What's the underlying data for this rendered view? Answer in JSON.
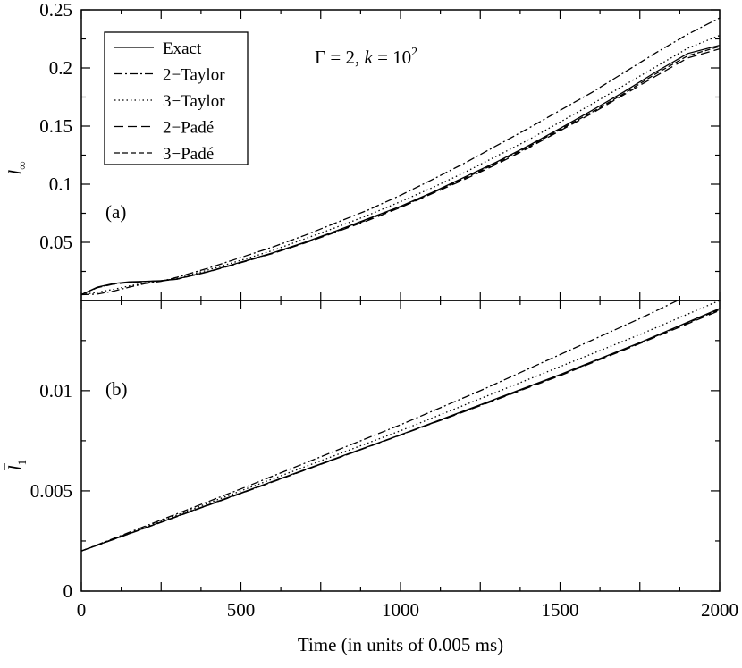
{
  "chart_data": [
    {
      "panel": "(a)",
      "type": "line",
      "ylabel": "l∞",
      "ylim": [
        0,
        0.25
      ],
      "xlim": [
        0,
        2000
      ],
      "yticks": [
        "0.05",
        "0.1",
        "0.15",
        "0.2",
        "0.25"
      ],
      "annotation": "Γ = 2, k = 10²",
      "legend_position": "top-left",
      "x": [
        0,
        50,
        100,
        150,
        200,
        250,
        300,
        400,
        500,
        600,
        700,
        800,
        900,
        1000,
        1100,
        1200,
        1300,
        1400,
        1500,
        1600,
        1700,
        1800,
        1900,
        2000
      ],
      "series": [
        {
          "name": "Exact",
          "dash": "solid",
          "values": [
            0.005,
            0.0115,
            0.0145,
            0.016,
            0.0165,
            0.017,
            0.0185,
            0.025,
            0.033,
            0.041,
            0.05,
            0.06,
            0.0705,
            0.081,
            0.093,
            0.106,
            0.119,
            0.133,
            0.148,
            0.1635,
            0.1795,
            0.1965,
            0.2125,
            0.2195
          ]
        },
        {
          "name": "2−Taylor",
          "dash": "dashdot",
          "values": [
            0.005,
            0.0055,
            0.008,
            0.0115,
            0.0145,
            0.0165,
            0.02,
            0.028,
            0.037,
            0.046,
            0.056,
            0.067,
            0.078,
            0.0905,
            0.104,
            0.118,
            0.133,
            0.148,
            0.1635,
            0.179,
            0.196,
            0.213,
            0.229,
            0.243
          ]
        },
        {
          "name": "3−Taylor",
          "dash": "dotted",
          "values": [
            0.005,
            0.007,
            0.0095,
            0.0125,
            0.015,
            0.0168,
            0.019,
            0.0265,
            0.0345,
            0.043,
            0.053,
            0.063,
            0.0735,
            0.085,
            0.097,
            0.11,
            0.124,
            0.138,
            0.1535,
            0.169,
            0.185,
            0.201,
            0.217,
            0.228
          ]
        },
        {
          "name": "2−Padé",
          "dash": "dashed",
          "values": [
            0.005,
            0.011,
            0.014,
            0.0155,
            0.0162,
            0.0168,
            0.0183,
            0.0248,
            0.0325,
            0.0405,
            0.0493,
            0.059,
            0.069,
            0.08,
            0.092,
            0.104,
            0.117,
            0.131,
            0.146,
            0.161,
            0.177,
            0.193,
            0.2085,
            0.2165
          ]
        },
        {
          "name": "3−Padé",
          "dash": "shortdash",
          "values": [
            0.005,
            0.0112,
            0.0142,
            0.0157,
            0.0163,
            0.0169,
            0.0184,
            0.0249,
            0.0328,
            0.0408,
            0.0497,
            0.0595,
            0.0698,
            0.0805,
            0.0925,
            0.105,
            0.118,
            0.132,
            0.147,
            0.162,
            0.178,
            0.195,
            0.2105,
            0.2185
          ]
        }
      ]
    },
    {
      "panel": "(b)",
      "type": "line",
      "ylabel": "l̄₁",
      "ylim": [
        0,
        0.0145
      ],
      "xlim": [
        0,
        2000
      ],
      "xlabel": "Time (in units of 0.005 ms)",
      "yticks": [
        "0",
        "0.005",
        "0.01"
      ],
      "xticks": [
        "0",
        "500",
        "1000",
        "1500",
        "2000"
      ],
      "x": [
        0,
        250,
        500,
        750,
        1000,
        1250,
        1500,
        1750,
        2000
      ],
      "series": [
        {
          "name": "Exact",
          "dash": "solid",
          "values": [
            0.002,
            0.00345,
            0.0049,
            0.00635,
            0.0078,
            0.0093,
            0.0108,
            0.0124,
            0.0141
          ]
        },
        {
          "name": "2−Taylor",
          "dash": "dashdot",
          "values": [
            0.002,
            0.00355,
            0.0051,
            0.0067,
            0.0083,
            0.01,
            0.0118,
            0.0136,
            0.0155
          ]
        },
        {
          "name": "3−Taylor",
          "dash": "dotted",
          "values": [
            0.002,
            0.0035,
            0.005,
            0.0065,
            0.008,
            0.0096,
            0.0112,
            0.0128,
            0.0145
          ]
        },
        {
          "name": "2−Padé",
          "dash": "dashed",
          "values": [
            0.002,
            0.00343,
            0.00487,
            0.00632,
            0.00778,
            0.00925,
            0.01075,
            0.01235,
            0.014
          ]
        },
        {
          "name": "3−Padé",
          "dash": "shortdash",
          "values": [
            0.002,
            0.00344,
            0.00488,
            0.00633,
            0.00779,
            0.00927,
            0.01078,
            0.01238,
            0.01405
          ]
        }
      ]
    }
  ]
}
